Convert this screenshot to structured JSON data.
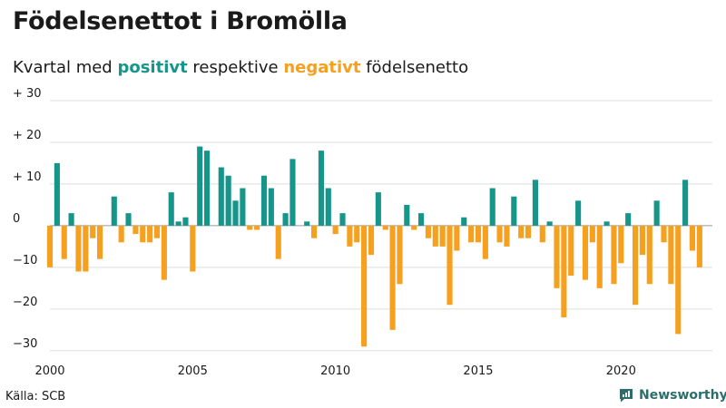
{
  "title": "Födelsenettot i Bromölla",
  "subtitle": {
    "prefix": "Kvartal med ",
    "positive": "positivt",
    "middle": " respektive ",
    "negative": "negativt",
    "suffix": " födelsenetto"
  },
  "colors": {
    "positive": "#16968a",
    "negative": "#f5a01e",
    "grid": "#dddddd",
    "brand": "#2c6e6a"
  },
  "source": "Källa: SCB",
  "brand": {
    "name": "Newsworthy",
    "icon": "newsworthy-logo-icon"
  },
  "chart_data": {
    "type": "bar",
    "x_start": 2000,
    "x_step": 0.25,
    "values": [
      -10,
      15,
      -8,
      3,
      -11,
      -11,
      -3,
      -8,
      0,
      7,
      -4,
      3,
      -2,
      -4,
      -4,
      -3,
      -13,
      8,
      1,
      2,
      -11,
      19,
      18,
      0,
      14,
      12,
      6,
      9,
      -1,
      -1,
      12,
      9,
      -8,
      3,
      16,
      0,
      1,
      -3,
      18,
      9,
      -2,
      3,
      -5,
      -4,
      -29,
      -7,
      8,
      -1,
      -25,
      -14,
      5,
      -1,
      3,
      -3,
      -5,
      -5,
      -19,
      -6,
      2,
      -4,
      -4,
      -8,
      9,
      -4,
      -5,
      7,
      -3,
      -3,
      11,
      -4,
      1,
      -15,
      -22,
      -12,
      6,
      -13,
      -4,
      -15,
      1,
      -14,
      -9,
      3,
      -19,
      -7,
      -14,
      6,
      -4,
      -14,
      -26,
      11,
      -6,
      -10
    ],
    "xlim": [
      2000,
      2023.2
    ],
    "ylim": [
      -32,
      30
    ],
    "x_ticks": [
      2000,
      2005,
      2010,
      2015,
      2020
    ],
    "x_tick_labels": [
      "2000",
      "2005",
      "2010",
      "2015",
      "2020"
    ],
    "y_ticks": [
      30,
      20,
      10,
      0,
      -10,
      -20,
      -30
    ],
    "y_tick_labels": [
      "+ 30",
      "+ 20",
      "+ 10",
      "0",
      "−10",
      "−20",
      "−30"
    ],
    "grid": true,
    "legend": "none"
  }
}
